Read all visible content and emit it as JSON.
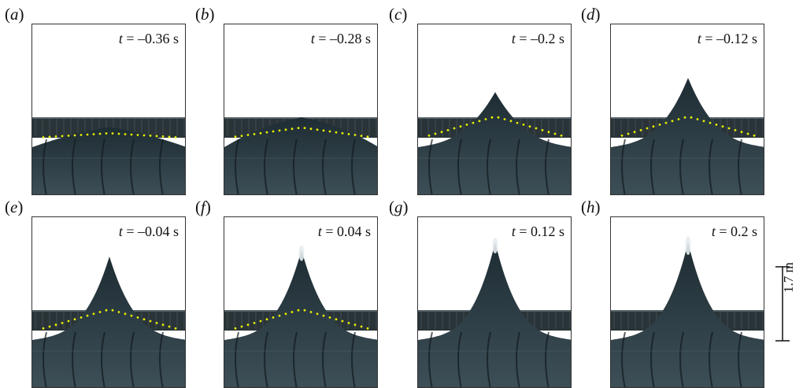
{
  "panels": [
    {
      "label_open": "(",
      "label_letter": "a",
      "label_close": ")",
      "time_prefix": "t",
      "time_value": " = –0.36 s",
      "peak": 0.08,
      "dots": true,
      "spray": 0
    },
    {
      "label_open": "(",
      "label_letter": "b",
      "label_close": ")",
      "time_prefix": "t",
      "time_value": " = –0.28 s",
      "peak": 0.18,
      "dots": true,
      "spray": 0
    },
    {
      "label_open": "(",
      "label_letter": "c",
      "label_close": ")",
      "time_prefix": "t",
      "time_value": " = –0.2 s",
      "peak": 0.45,
      "dots": true,
      "spray": 0
    },
    {
      "label_open": "(",
      "label_letter": "d",
      "label_close": ")",
      "time_prefix": "t",
      "time_value": " = –0.12 s",
      "peak": 0.6,
      "dots": true,
      "spray": 0
    },
    {
      "label_open": "(",
      "label_letter": "e",
      "label_close": ")",
      "time_prefix": "t",
      "time_value": " = –0.04 s",
      "peak": 0.75,
      "dots": true,
      "spray": 0
    },
    {
      "label_open": "(",
      "label_letter": "f",
      "label_close": ")",
      "time_prefix": "t",
      "time_value": " = 0.04 s",
      "peak": 0.82,
      "dots": true,
      "spray": 1
    },
    {
      "label_open": "(",
      "label_letter": "g",
      "label_close": ")",
      "time_prefix": "t",
      "time_value": " = 0.12 s",
      "peak": 0.9,
      "dots": false,
      "spray": 1
    },
    {
      "label_open": "(",
      "label_letter": "h",
      "label_close": ")",
      "time_prefix": "t",
      "time_value": " = 0.2 s",
      "peak": 0.9,
      "dots": false,
      "spray": 2
    }
  ],
  "scale_bar": {
    "label": "1.7 m"
  },
  "colors": {
    "water_dark": "#1e2c33",
    "water_light": "#3d4f57",
    "dots": "#e8f000",
    "tank_edge": "#2a3438"
  }
}
